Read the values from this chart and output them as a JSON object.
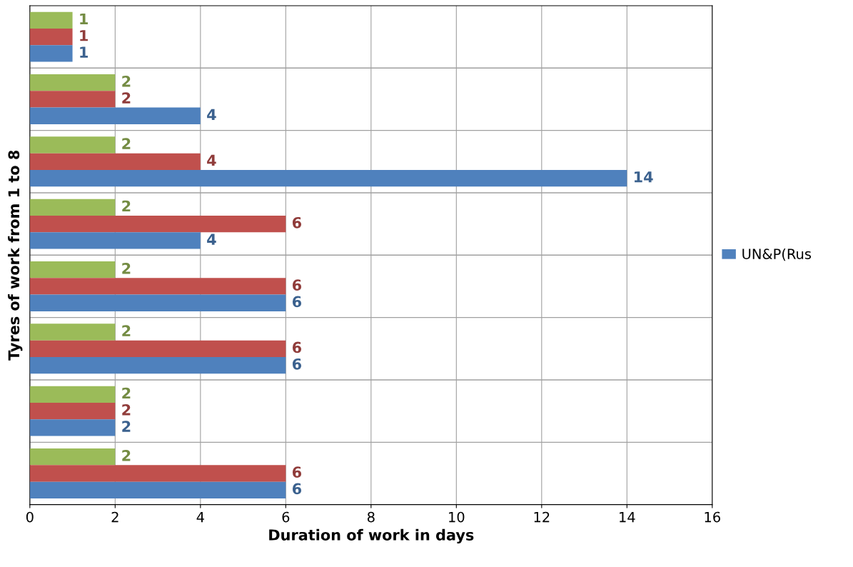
{
  "chart_data": {
    "type": "bar",
    "orientation": "horizontal",
    "ylabel": "Tyres of work from 1 to 8",
    "xlabel": "Duration of work in days",
    "categories": [
      null,
      null,
      null,
      null,
      null,
      null,
      null,
      null
    ],
    "series": [
      {
        "color": "#9bbb59",
        "values": [
          1,
          2,
          2,
          2,
          2,
          2,
          2,
          2
        ]
      },
      {
        "color": "#c0504d",
        "values": [
          1,
          2,
          4,
          6,
          6,
          6,
          2,
          6
        ]
      },
      {
        "name": "UN&P(Rus",
        "color": "#4f81bd",
        "values": [
          1,
          4,
          14,
          4,
          6,
          6,
          2,
          6
        ]
      }
    ],
    "xlim": [
      0,
      16
    ],
    "xticks": [
      0,
      2,
      4,
      6,
      8,
      10,
      12,
      14,
      16
    ],
    "grid": true,
    "legend": "right",
    "data_labels": true
  }
}
